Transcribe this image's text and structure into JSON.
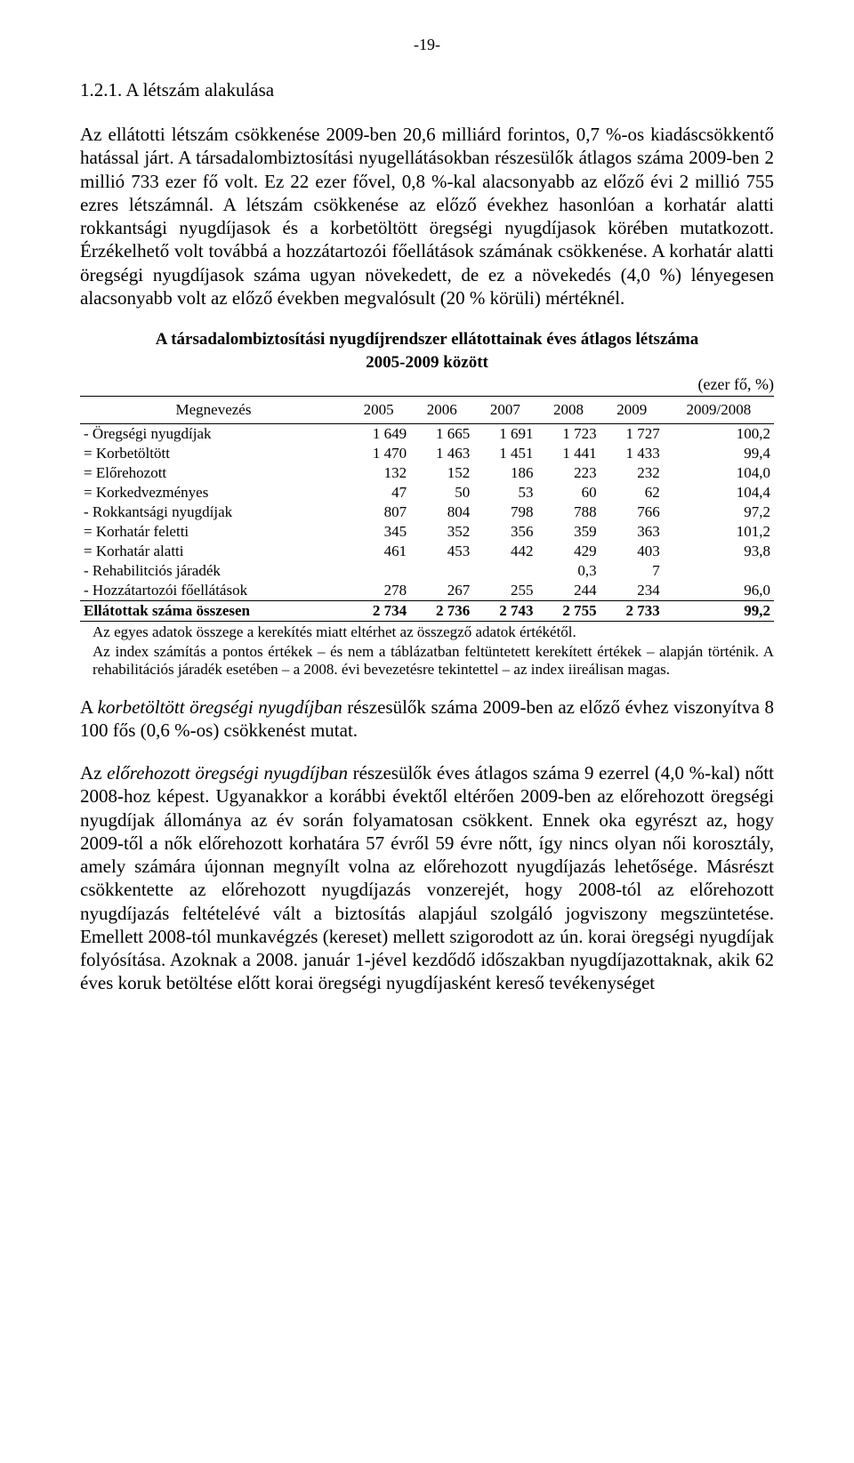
{
  "page_number": "-19-",
  "section_heading": "1.2.1. A létszám alakulása",
  "para1": "Az ellátotti létszám csökkenése 2009-ben 20,6 milliárd forintos, 0,7 %-os kiadáscsökkentő hatással járt. A társadalombiztosítási nyugellátásokban részesülők átlagos száma 2009-ben 2 millió 733 ezer fő volt. Ez 22 ezer fővel, 0,8 %-kal alacsonyabb az előző évi 2 millió 755 ezres létszámnál. A létszám csökkenése az előző évekhez hasonlóan a korhatár alatti rokkantsági nyugdíjasok és a korbetöltött öregségi nyugdíjasok körében mutatkozott. Érzékelhető volt továbbá a hozzátartozói főellátások számának csökkenése. A korhatár alatti öregségi nyugdíjasok száma ugyan növekedett, de ez a növekedés (4,0 %) lényegesen alacsonyabb volt az előző években megvalósult (20 % körüli) mértéknél.",
  "table": {
    "title_line1": "A társadalombiztosítási nyugdíjrendszer ellátottainak éves átlagos létszáma",
    "title_line2": "2005-2009 között",
    "unit": "(ezer fő, %)",
    "columns": [
      "Megnevezés",
      "2005",
      "2006",
      "2007",
      "2008",
      "2009",
      "2009/2008"
    ],
    "rows": [
      {
        "label": "-  Öregségi nyugdíjak",
        "indent": 0,
        "vals": [
          "1 649",
          "1 665",
          "1 691",
          "1 723",
          "1 727",
          "100,2"
        ]
      },
      {
        "label": "=    Korbetöltött",
        "indent": 1,
        "vals": [
          "1 470",
          "1 463",
          "1 451",
          "1 441",
          "1 433",
          "99,4"
        ]
      },
      {
        "label": "=    Előrehozott",
        "indent": 1,
        "vals": [
          "132",
          "152",
          "186",
          "223",
          "232",
          "104,0"
        ]
      },
      {
        "label": "=    Korkedvezményes",
        "indent": 1,
        "vals": [
          "47",
          "50",
          "53",
          "60",
          "62",
          "104,4"
        ]
      },
      {
        "label": "-  Rokkantsági nyugdíjak",
        "indent": 0,
        "vals": [
          "807",
          "804",
          "798",
          "788",
          "766",
          "97,2"
        ]
      },
      {
        "label": "=    Korhatár feletti",
        "indent": 1,
        "vals": [
          "345",
          "352",
          "356",
          "359",
          "363",
          "101,2"
        ]
      },
      {
        "label": "=    Korhatár alatti",
        "indent": 1,
        "vals": [
          "461",
          "453",
          "442",
          "429",
          "403",
          "93,8"
        ]
      },
      {
        "label": "-  Rehabilitciós járadék",
        "indent": 0,
        "vals": [
          "",
          "",
          "",
          "0,3",
          "7",
          ""
        ]
      },
      {
        "label": "-  Hozzátartozói főellátások",
        "indent": 0,
        "vals": [
          "278",
          "267",
          "255",
          "244",
          "234",
          "96,0"
        ]
      }
    ],
    "total": {
      "label": "Ellátottak száma összesen",
      "vals": [
        "2 734",
        "2 736",
        "2 743",
        "2 755",
        "2 733",
        "99,2"
      ]
    },
    "notes": [
      "Az egyes adatok összege a kerekítés miatt eltérhet az összegző adatok értékétől.",
      "Az index számítás a pontos értékek – és nem a táblázatban feltüntetett kerekített értékek – alapján történik. A rehabilitációs járadék esetében – a 2008. évi bevezetésre tekintettel – az index iireálisan magas."
    ]
  },
  "para2_pre": "A ",
  "para2_italic": "korbetöltött öregségi nyugdíjban",
  "para2_post": " részesülők száma 2009-ben az előző évhez viszonyítva 8 100 fős (0,6 %-os) csökkenést mutat.",
  "para3_pre": "Az ",
  "para3_italic": "előrehozott öregségi nyugdíjban",
  "para3_post": " részesülők éves átlagos száma 9 ezerrel (4,0 %-kal) nőtt 2008-hoz képest. Ugyanakkor a korábbi évektől eltérően 2009-ben az előrehozott öregségi nyugdíjak állománya az év során folyamatosan csökkent. Ennek oka egyrészt az, hogy 2009-től a nők előrehozott korhatára 57 évről 59 évre nőtt, így nincs olyan női korosztály, amely számára újonnan megnyílt volna az előrehozott nyugdíjazás lehetősége. Másrészt csökkentette az előrehozott nyugdíjazás vonzerejét, hogy 2008-tól az előrehozott nyugdíjazás feltételévé vált a biztosítás alapjául szolgáló jogviszony megszüntetése. Emellett 2008-tól munkavégzés (kereset) mellett szigorodott az ún. korai öregségi nyugdíjak folyósítása. Azoknak a 2008. január 1-jével kezdődő időszakban nyugdíjazottaknak, akik 62 éves koruk betöltése előtt korai öregségi nyugdíjasként kereső tevékenységet"
}
